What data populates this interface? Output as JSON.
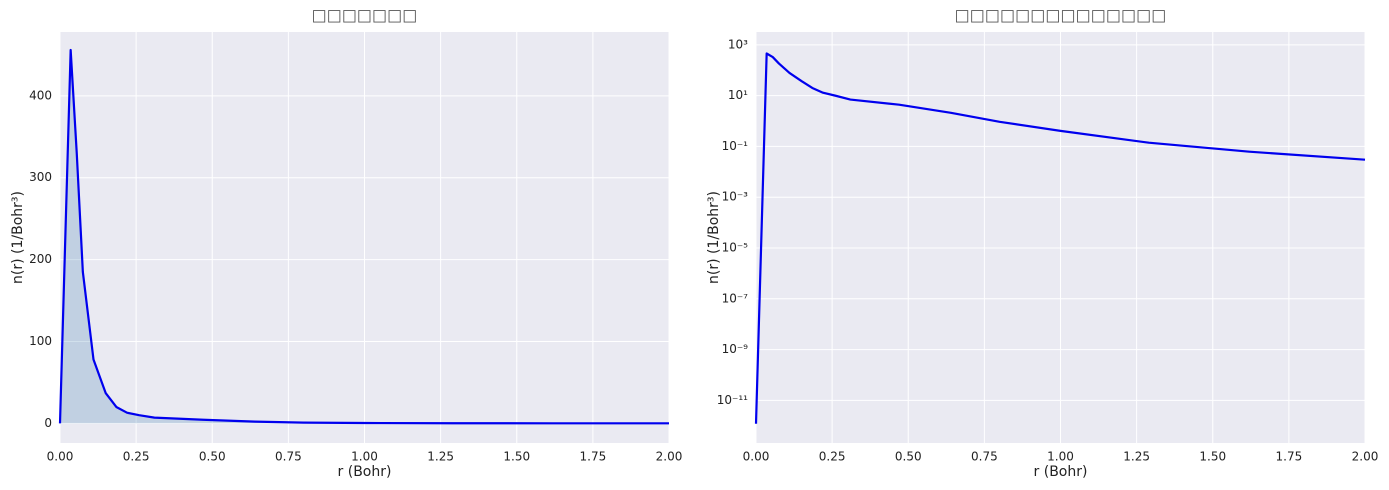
{
  "chart_data": [
    {
      "type": "line",
      "title": "□□□□□□□",
      "xlabel": "r (Bohr)",
      "ylabel": "n(r) (1/Bohr³)",
      "x": [
        0,
        0.035,
        0.055,
        0.075,
        0.11,
        0.15,
        0.185,
        0.22,
        0.26,
        0.31,
        0.47,
        0.64,
        0.8,
        1.0,
        1.29,
        1.62,
        2.0
      ],
      "values": [
        1.2e-12,
        456,
        330,
        185,
        78,
        37,
        20,
        13,
        10,
        7,
        4.4,
        2.1,
        0.93,
        0.41,
        0.14,
        0.062,
        0.03
      ],
      "color": "#0000ee",
      "fill": true,
      "log_y": false,
      "grid": true,
      "xlim": [
        0,
        2
      ],
      "ylim": [
        -24,
        478
      ],
      "xticks": [
        {
          "value": 0,
          "label": "0.00"
        },
        {
          "value": 0.25,
          "label": "0.25"
        },
        {
          "value": 0.5,
          "label": "0.50"
        },
        {
          "value": 0.75,
          "label": "0.75"
        },
        {
          "value": 1,
          "label": "1.00"
        },
        {
          "value": 1.25,
          "label": "1.25"
        },
        {
          "value": 1.5,
          "label": "1.50"
        },
        {
          "value": 1.75,
          "label": "1.75"
        },
        {
          "value": 2,
          "label": "2.00"
        }
      ],
      "yticks": [
        0,
        100,
        200,
        300,
        400
      ]
    },
    {
      "type": "line",
      "title": "□□□□□□□□□□□□□□",
      "xlabel": "r (Bohr)",
      "ylabel": "n(r) (1/Bohr³)",
      "x": [
        0,
        0.035,
        0.055,
        0.075,
        0.11,
        0.15,
        0.185,
        0.22,
        0.26,
        0.31,
        0.47,
        0.64,
        0.8,
        1.0,
        1.29,
        1.62,
        2.0
      ],
      "values": [
        1.2e-12,
        456,
        330,
        185,
        78,
        37,
        20,
        13,
        10,
        7,
        4.4,
        2.1,
        0.93,
        0.41,
        0.14,
        0.062,
        0.03
      ],
      "color": "#0000ee",
      "fill": false,
      "log_y": true,
      "grid": true,
      "xlim": [
        0,
        2
      ],
      "ylim": [
        2.1e-13,
        3200
      ],
      "xticks": [
        {
          "value": 0,
          "label": "0.00"
        },
        {
          "value": 0.25,
          "label": "0.25"
        },
        {
          "value": 0.5,
          "label": "0.50"
        },
        {
          "value": 0.75,
          "label": "0.75"
        },
        {
          "value": 1,
          "label": "1.00"
        },
        {
          "value": 1.25,
          "label": "1.25"
        },
        {
          "value": 1.5,
          "label": "1.50"
        },
        {
          "value": 1.75,
          "label": "1.75"
        },
        {
          "value": 2,
          "label": "2.00"
        }
      ],
      "yticks": [
        {
          "value": 1000.0,
          "label": "10³"
        },
        {
          "value": 10,
          "label": "10¹"
        },
        {
          "value": 0.1,
          "label": "10⁻¹"
        },
        {
          "value": 0.001,
          "label": "10⁻³"
        },
        {
          "value": 1e-05,
          "label": "10⁻⁵"
        },
        {
          "value": 1e-07,
          "label": "10⁻⁷"
        },
        {
          "value": 1e-09,
          "label": "10⁻⁹"
        },
        {
          "value": 1e-11,
          "label": "10⁻¹¹"
        }
      ]
    }
  ]
}
